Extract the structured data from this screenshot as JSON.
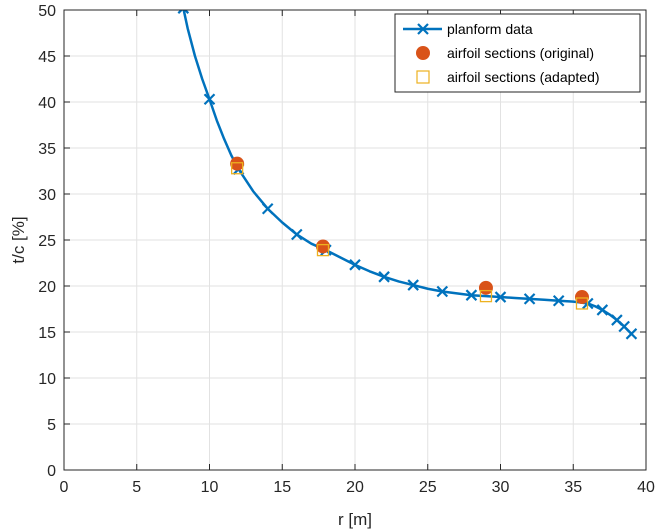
{
  "chart_data": {
    "type": "line",
    "title": "",
    "xlabel": "r [m]",
    "ylabel": "t/c [%]",
    "xlim": [
      0,
      40
    ],
    "ylim": [
      0,
      50
    ],
    "x_ticks": [
      0,
      5,
      10,
      15,
      20,
      25,
      30,
      35,
      40
    ],
    "y_ticks": [
      0,
      5,
      10,
      15,
      20,
      25,
      30,
      35,
      40,
      45,
      50
    ],
    "grid": true,
    "legend_position": "top-right",
    "series": [
      {
        "name": "planform data",
        "marker": "x",
        "color": "#0072BD",
        "x": [
          8.2,
          10,
          12,
          14,
          16,
          18,
          20,
          22,
          24,
          26,
          28,
          30,
          32,
          34,
          36,
          37,
          38,
          38.5,
          39
        ],
        "y": [
          50.2,
          40.3,
          32.7,
          28.4,
          25.6,
          23.9,
          22.3,
          21.0,
          20.1,
          19.4,
          19.0,
          18.8,
          18.6,
          18.4,
          18.1,
          17.4,
          16.3,
          15.6,
          14.8
        ],
        "curve_x": [
          8.2,
          8.5,
          9,
          9.5,
          10,
          10.5,
          11,
          11.5,
          12,
          13,
          14,
          15,
          16,
          17,
          18,
          19,
          20,
          21,
          22,
          23,
          24,
          25,
          26,
          27,
          28,
          29,
          30,
          31,
          32,
          33,
          34,
          35,
          35.5,
          36,
          36.5,
          37,
          37.5,
          38,
          38.5,
          39
        ],
        "curve_y": [
          50.2,
          48.0,
          45.0,
          42.5,
          40.3,
          38.0,
          36.0,
          34.2,
          32.7,
          30.3,
          28.4,
          26.9,
          25.6,
          24.6,
          23.9,
          23.1,
          22.3,
          21.6,
          21.0,
          20.5,
          20.1,
          19.7,
          19.4,
          19.2,
          19.0,
          18.9,
          18.8,
          18.7,
          18.6,
          18.5,
          18.4,
          18.3,
          18.2,
          18.1,
          17.8,
          17.4,
          16.9,
          16.3,
          15.6,
          14.8
        ]
      },
      {
        "name": "airfoil sections (original)",
        "marker": "filled-circle",
        "color": "#D95319",
        "x": [
          11.9,
          17.8,
          29.0,
          35.6
        ],
        "y": [
          33.3,
          24.3,
          19.8,
          18.8
        ]
      },
      {
        "name": "airfoil sections (adapted)",
        "marker": "open-square",
        "color": "#EDB120",
        "x": [
          11.9,
          17.8,
          29.0,
          35.6
        ],
        "y": [
          32.8,
          23.9,
          18.9,
          18.1
        ]
      }
    ]
  }
}
